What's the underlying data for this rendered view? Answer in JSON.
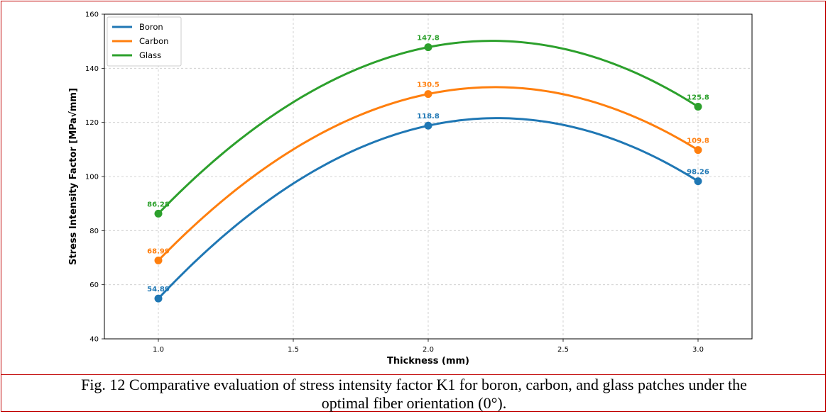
{
  "chart_data": {
    "type": "line",
    "xlabel": "Thickness (mm)",
    "ylabel": "Stress Intensity Factor [MPa√mm]",
    "x": [
      1.0,
      2.0,
      3.0
    ],
    "x_ticks": [
      "1.0",
      "1.5",
      "2.0",
      "2.5",
      "3.0"
    ],
    "xlim": [
      0.8,
      3.2
    ],
    "ylim": [
      40,
      160
    ],
    "y_ticks": [
      "40",
      "60",
      "80",
      "100",
      "120",
      "140",
      "160"
    ],
    "grid": true,
    "legend_position": "top-left",
    "series": [
      {
        "name": "Boron",
        "color": "#1f77b4",
        "values": [
          54.89,
          118.8,
          98.26
        ],
        "labels": [
          "54.89",
          "118.8",
          "98.26"
        ]
      },
      {
        "name": "Carbon",
        "color": "#ff7f0e",
        "values": [
          68.99,
          130.5,
          109.8
        ],
        "labels": [
          "68.99",
          "130.5",
          "109.8"
        ]
      },
      {
        "name": "Glass",
        "color": "#2ca02c",
        "values": [
          86.28,
          147.8,
          125.8
        ],
        "labels": [
          "86.28",
          "147.8",
          "125.8"
        ]
      }
    ]
  },
  "caption": {
    "line1": "Fig. 12 Comparative evaluation of stress intensity factor K1 for boron, carbon, and glass patches under the",
    "line2": "optimal fiber orientation (0°)."
  }
}
